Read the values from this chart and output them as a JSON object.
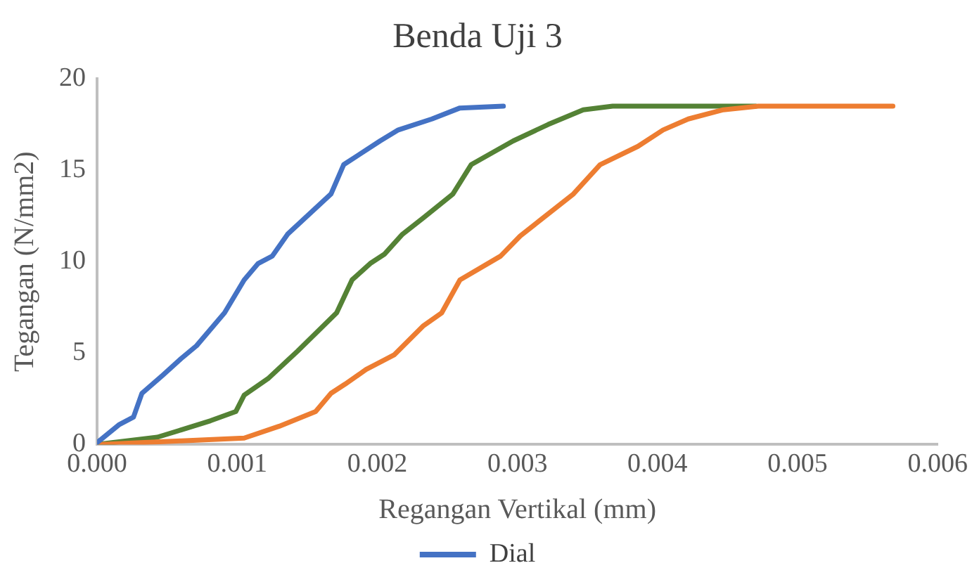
{
  "chart_data": {
    "type": "line",
    "title": "Benda Uji 3",
    "xlabel": "Regangan Vertikal (mm)",
    "ylabel": "Tegangan (N/mm2)",
    "xlim": [
      0,
      0.006
    ],
    "xticks": [
      {
        "value": 0,
        "label": "0.000"
      },
      {
        "value": 0.001,
        "label": "0.001"
      },
      {
        "value": 0.002,
        "label": "0.002"
      },
      {
        "value": 0.003,
        "label": "0.003"
      },
      {
        "value": 0.004,
        "label": "0.004"
      },
      {
        "value": 0.005,
        "label": "0.005"
      },
      {
        "value": 0.006,
        "label": "0.006"
      }
    ],
    "ylim": [
      0,
      20
    ],
    "yticks": [
      0,
      5,
      10,
      15,
      20
    ],
    "grid": false,
    "legend": "bottom",
    "marker": "none",
    "series": [
      {
        "name": "Dial",
        "color": "#4472c4",
        "x": [
          0,
          0.00016,
          0.00026,
          0.00032,
          0.00047,
          0.0006,
          0.00071,
          0.00091,
          0.00105,
          0.00115,
          0.00125,
          0.00136,
          0.00167,
          0.00176,
          0.00202,
          0.00215,
          0.00239,
          0.00259,
          0.0029
        ],
        "values": [
          0.1,
          1.1,
          1.5,
          2.8,
          3.8,
          4.7,
          5.4,
          7.2,
          9.0,
          9.9,
          10.3,
          11.5,
          13.7,
          15.3,
          16.6,
          17.2,
          17.8,
          18.4,
          18.5
        ]
      },
      {
        "color": "#ed7d31",
        "x": [
          0,
          0.0006,
          0.00105,
          0.0013,
          0.00156,
          0.00167,
          0.00177,
          0.00192,
          0.00212,
          0.00233,
          0.00246,
          0.00259,
          0.00288,
          0.00302,
          0.0034,
          0.00359,
          0.00386,
          0.00404,
          0.00422,
          0.00447,
          0.00472,
          0.00568
        ],
        "values": [
          0,
          0.2,
          0.35,
          1.0,
          1.8,
          2.8,
          3.3,
          4.1,
          4.9,
          6.5,
          7.2,
          9.0,
          10.3,
          11.4,
          13.7,
          15.3,
          16.3,
          17.2,
          17.8,
          18.3,
          18.5,
          18.5
        ]
      },
      {
        "color": "#548235",
        "x": [
          0,
          0.00043,
          0.0006,
          0.00081,
          0.00099,
          0.00105,
          0.00122,
          0.00143,
          0.00171,
          0.00182,
          0.00195,
          0.00205,
          0.00218,
          0.00233,
          0.00254,
          0.00267,
          0.00297,
          0.00322,
          0.00347,
          0.00368,
          0.0047
        ],
        "values": [
          0,
          0.4,
          0.8,
          1.3,
          1.8,
          2.7,
          3.6,
          5.1,
          7.2,
          9.0,
          9.9,
          10.4,
          11.5,
          12.4,
          13.7,
          15.3,
          16.6,
          17.5,
          18.3,
          18.5,
          18.5
        ]
      }
    ]
  }
}
